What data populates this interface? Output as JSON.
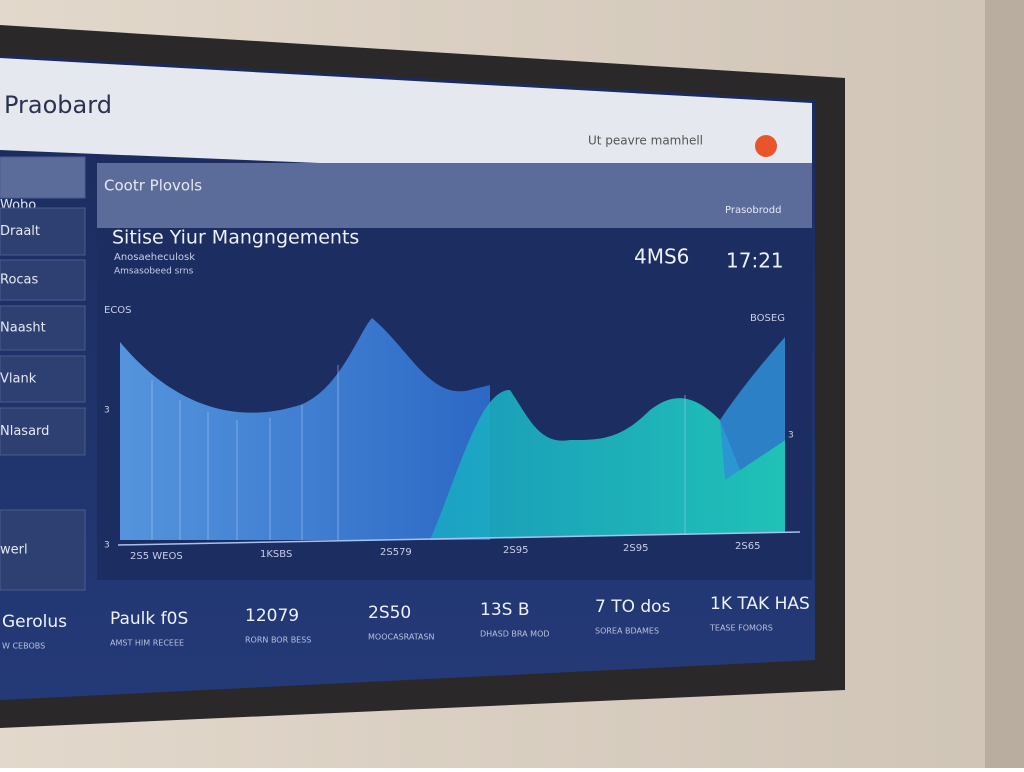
{
  "header": {
    "title": "Praobard",
    "status": "Ut peavre mamhell"
  },
  "sidebar": {
    "items": [
      "Wobo",
      "Draalt",
      "Rocas",
      "Naasht",
      "Vlank",
      "Nlasard",
      "werl"
    ]
  },
  "panel": {
    "title": "Cootr Plovols",
    "action": "Prasobrodd",
    "chart_title": "Sitise Yiur Mangngements",
    "subtitle": "Anosaeheculosk",
    "caption": "Amsasobeed srns",
    "stats": [
      "4MS6",
      "17:21"
    ],
    "y_labels": [
      "ECOS",
      "3",
      "3"
    ],
    "right_labels": [
      "BOSEG",
      "3"
    ],
    "x_labels": [
      "2S5 WEOS",
      "1KSBS",
      "2S579",
      "2S95",
      "2S95",
      "2S65"
    ]
  },
  "footer": {
    "items": [
      {
        "value": "Gerolus",
        "label": "W CEBOBS"
      },
      {
        "value": "Paulk f0S",
        "label": "AMST HIM RECEEE"
      },
      {
        "value": "12079",
        "label": "RORN BOR BESS"
      },
      {
        "value": "2S50",
        "label": "MOOCASRATASN"
      },
      {
        "value": "13S B",
        "label": "DHASD BRA MOD"
      },
      {
        "value": "7 TO dos",
        "label": "SOREA BDAMES"
      },
      {
        "value": "1K TAK HAS",
        "label": "TEASE FOMORS"
      }
    ]
  }
}
